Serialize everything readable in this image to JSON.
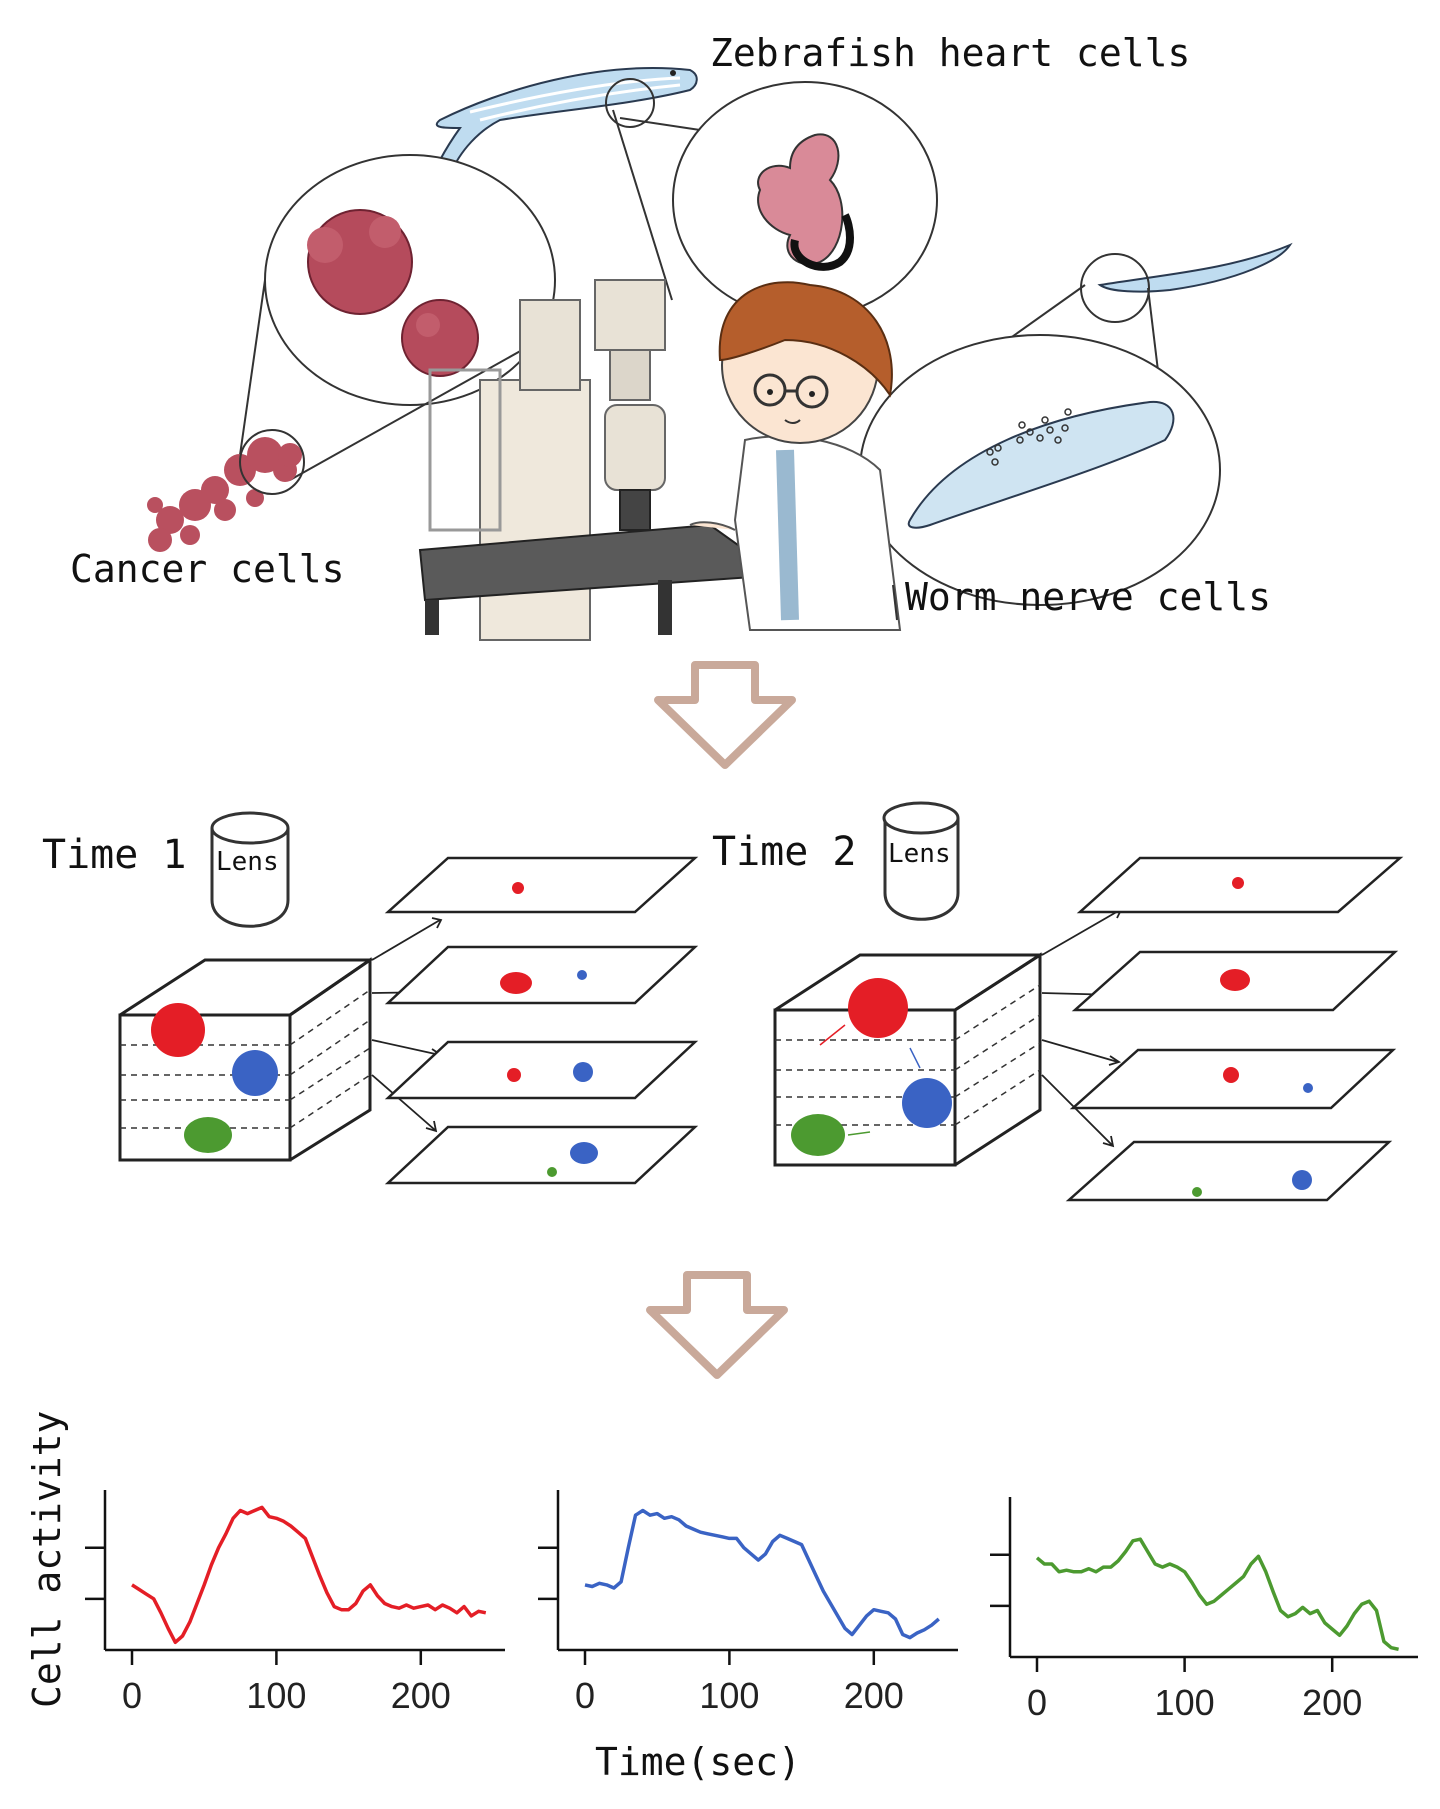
{
  "top": {
    "labels": {
      "zebrafish": "Zebrafish heart cells",
      "cancer": "Cancer cells",
      "worm": "Worm nerve cells"
    }
  },
  "middle": {
    "left": {
      "time_label": "Time 1",
      "lens_label": "Lens"
    },
    "right": {
      "time_label": "Time 2",
      "lens_label": "Lens"
    }
  },
  "colors": {
    "red": "#e41e26",
    "blue": "#3a63c4",
    "green": "#4c9a30",
    "arrow": "#c9a99a"
  },
  "chart_data": {
    "type": "line",
    "ylabel": "Cell activity",
    "xlabel": "Time(sec)",
    "panels": [
      {
        "color": "red",
        "x_ticks": [
          0,
          100,
          200
        ],
        "xlim": [
          0,
          250
        ],
        "ylim": [
          0,
          1
        ],
        "y_ticks": [
          0.33,
          0.66
        ],
        "series": [
          [
            0,
            0.42
          ],
          [
            5,
            0.39
          ],
          [
            10,
            0.36
          ],
          [
            15,
            0.33
          ],
          [
            20,
            0.24
          ],
          [
            25,
            0.14
          ],
          [
            30,
            0.05
          ],
          [
            35,
            0.09
          ],
          [
            40,
            0.18
          ],
          [
            45,
            0.3
          ],
          [
            50,
            0.42
          ],
          [
            55,
            0.55
          ],
          [
            60,
            0.66
          ],
          [
            65,
            0.75
          ],
          [
            70,
            0.85
          ],
          [
            75,
            0.9
          ],
          [
            80,
            0.88
          ],
          [
            85,
            0.9
          ],
          [
            90,
            0.92
          ],
          [
            95,
            0.86
          ],
          [
            100,
            0.85
          ],
          [
            105,
            0.83
          ],
          [
            110,
            0.8
          ],
          [
            115,
            0.76
          ],
          [
            120,
            0.72
          ],
          [
            125,
            0.6
          ],
          [
            130,
            0.48
          ],
          [
            135,
            0.37
          ],
          [
            140,
            0.28
          ],
          [
            145,
            0.26
          ],
          [
            150,
            0.26
          ],
          [
            155,
            0.3
          ],
          [
            160,
            0.38
          ],
          [
            165,
            0.42
          ],
          [
            170,
            0.35
          ],
          [
            175,
            0.3
          ],
          [
            180,
            0.28
          ],
          [
            185,
            0.27
          ],
          [
            190,
            0.29
          ],
          [
            195,
            0.27
          ],
          [
            200,
            0.28
          ],
          [
            205,
            0.29
          ],
          [
            210,
            0.26
          ],
          [
            215,
            0.29
          ],
          [
            220,
            0.27
          ],
          [
            225,
            0.24
          ],
          [
            230,
            0.28
          ],
          [
            235,
            0.22
          ],
          [
            240,
            0.25
          ],
          [
            245,
            0.24
          ]
        ]
      },
      {
        "color": "blue",
        "x_ticks": [
          0,
          100,
          200
        ],
        "xlim": [
          0,
          250
        ],
        "ylim": [
          0,
          1
        ],
        "y_ticks": [
          0.33,
          0.66
        ],
        "series": [
          [
            0,
            0.42
          ],
          [
            5,
            0.41
          ],
          [
            10,
            0.43
          ],
          [
            15,
            0.42
          ],
          [
            20,
            0.4
          ],
          [
            25,
            0.44
          ],
          [
            30,
            0.66
          ],
          [
            35,
            0.87
          ],
          [
            40,
            0.9
          ],
          [
            45,
            0.87
          ],
          [
            50,
            0.88
          ],
          [
            55,
            0.85
          ],
          [
            60,
            0.86
          ],
          [
            65,
            0.84
          ],
          [
            70,
            0.8
          ],
          [
            75,
            0.78
          ],
          [
            80,
            0.76
          ],
          [
            85,
            0.75
          ],
          [
            90,
            0.74
          ],
          [
            95,
            0.73
          ],
          [
            100,
            0.72
          ],
          [
            105,
            0.72
          ],
          [
            110,
            0.66
          ],
          [
            115,
            0.62
          ],
          [
            120,
            0.58
          ],
          [
            125,
            0.62
          ],
          [
            130,
            0.7
          ],
          [
            135,
            0.74
          ],
          [
            140,
            0.72
          ],
          [
            145,
            0.7
          ],
          [
            150,
            0.68
          ],
          [
            155,
            0.58
          ],
          [
            160,
            0.48
          ],
          [
            165,
            0.38
          ],
          [
            170,
            0.3
          ],
          [
            175,
            0.22
          ],
          [
            180,
            0.14
          ],
          [
            185,
            0.1
          ],
          [
            190,
            0.16
          ],
          [
            195,
            0.22
          ],
          [
            200,
            0.26
          ],
          [
            205,
            0.25
          ],
          [
            210,
            0.24
          ],
          [
            215,
            0.2
          ],
          [
            220,
            0.1
          ],
          [
            225,
            0.08
          ],
          [
            230,
            0.11
          ],
          [
            235,
            0.13
          ],
          [
            240,
            0.16
          ],
          [
            245,
            0.2
          ]
        ]
      },
      {
        "color": "green",
        "x_ticks": [
          0,
          100,
          200
        ],
        "xlim": [
          0,
          250
        ],
        "ylim": [
          0,
          1
        ],
        "y_ticks": [
          0.33,
          0.66
        ],
        "series": [
          [
            0,
            0.64
          ],
          [
            5,
            0.6
          ],
          [
            10,
            0.6
          ],
          [
            15,
            0.55
          ],
          [
            20,
            0.56
          ],
          [
            25,
            0.55
          ],
          [
            30,
            0.55
          ],
          [
            35,
            0.57
          ],
          [
            40,
            0.55
          ],
          [
            45,
            0.58
          ],
          [
            50,
            0.58
          ],
          [
            55,
            0.62
          ],
          [
            60,
            0.68
          ],
          [
            65,
            0.75
          ],
          [
            70,
            0.76
          ],
          [
            75,
            0.68
          ],
          [
            80,
            0.6
          ],
          [
            85,
            0.58
          ],
          [
            90,
            0.6
          ],
          [
            95,
            0.58
          ],
          [
            100,
            0.55
          ],
          [
            105,
            0.48
          ],
          [
            110,
            0.4
          ],
          [
            115,
            0.34
          ],
          [
            120,
            0.36
          ],
          [
            125,
            0.4
          ],
          [
            130,
            0.44
          ],
          [
            135,
            0.48
          ],
          [
            140,
            0.52
          ],
          [
            145,
            0.6
          ],
          [
            150,
            0.65
          ],
          [
            155,
            0.55
          ],
          [
            160,
            0.42
          ],
          [
            165,
            0.3
          ],
          [
            170,
            0.26
          ],
          [
            175,
            0.28
          ],
          [
            180,
            0.32
          ],
          [
            185,
            0.28
          ],
          [
            190,
            0.3
          ],
          [
            195,
            0.22
          ],
          [
            200,
            0.18
          ],
          [
            205,
            0.14
          ],
          [
            210,
            0.2
          ],
          [
            215,
            0.28
          ],
          [
            220,
            0.34
          ],
          [
            225,
            0.36
          ],
          [
            230,
            0.3
          ],
          [
            235,
            0.1
          ],
          [
            240,
            0.06
          ],
          [
            245,
            0.05
          ]
        ]
      }
    ]
  }
}
